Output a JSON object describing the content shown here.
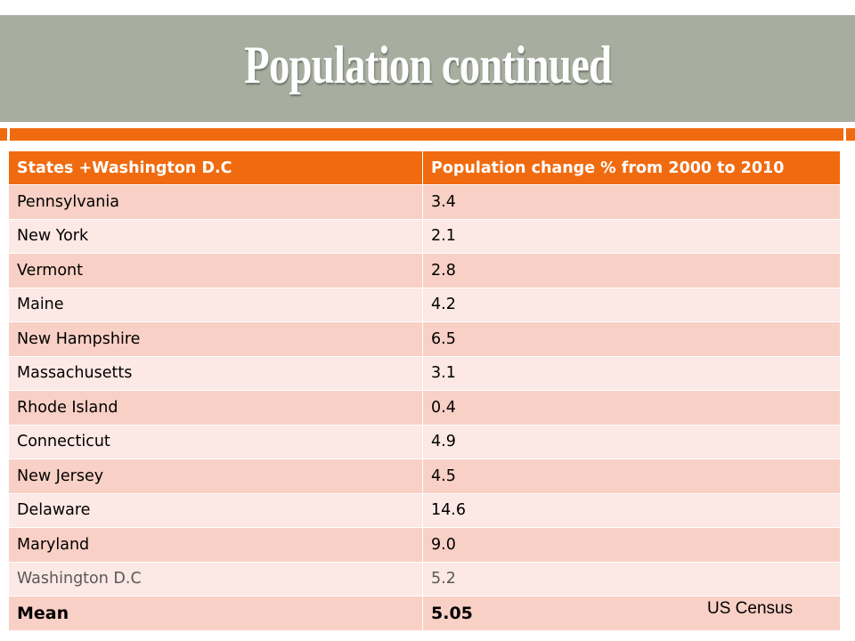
{
  "title": "Population continued",
  "table": {
    "headers": [
      "States +Washington D.C",
      "Population change % from 2000 to 2010"
    ],
    "rows": [
      {
        "state": "Pennsylvania",
        "change": "3.4"
      },
      {
        "state": "New York",
        "change": "2.1"
      },
      {
        "state": "Vermont",
        "change": "2.8"
      },
      {
        "state": "Maine",
        "change": "4.2"
      },
      {
        "state": "New Hampshire",
        "change": "6.5"
      },
      {
        "state": "Massachusetts",
        "change": "3.1"
      },
      {
        "state": "Rhode Island",
        "change": "0.4"
      },
      {
        "state": "Connecticut",
        "change": "4.9"
      },
      {
        "state": "New Jersey",
        "change": "4.5"
      },
      {
        "state": "Delaware",
        "change": "14.6"
      },
      {
        "state": "Maryland",
        "change": "9.0"
      },
      {
        "state": "Washington D.C",
        "change": "5.2"
      }
    ],
    "mean": {
      "label": "Mean",
      "value": "5.05"
    }
  },
  "source": "US Census",
  "colors": {
    "title_bar": "#a7ad9f",
    "accent": "#f06b10",
    "row_dark": "#f9d0c5",
    "row_light": "#fce8e4"
  }
}
